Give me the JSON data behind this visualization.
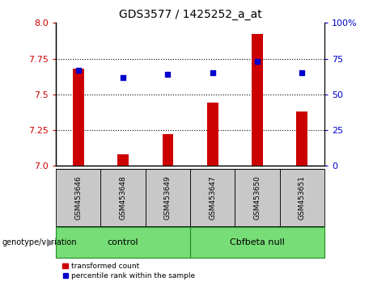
{
  "title": "GDS3577 / 1425252_a_at",
  "samples": [
    "GSM453646",
    "GSM453648",
    "GSM453649",
    "GSM453647",
    "GSM453650",
    "GSM453651"
  ],
  "red_values": [
    7.68,
    7.08,
    7.22,
    7.44,
    7.92,
    7.38
  ],
  "blue_values": [
    67,
    62,
    64,
    65,
    73,
    65
  ],
  "ylim_left": [
    7.0,
    8.0
  ],
  "ylim_right": [
    0,
    100
  ],
  "yticks_left": [
    7.0,
    7.25,
    7.5,
    7.75,
    8.0
  ],
  "yticks_right": [
    0,
    25,
    50,
    75,
    100
  ],
  "ytick_labels_right": [
    "0",
    "25",
    "50",
    "75",
    "100%"
  ],
  "group_label_prefix": "genotype/variation",
  "legend_red": "transformed count",
  "legend_blue": "percentile rank within the sample",
  "red_color": "#CC0000",
  "blue_color": "#0000CC",
  "tick_label_area_color": "#C8C8C8",
  "group_area_color": "#77DD77",
  "group_border_color": "#228B22",
  "dotted_lines": [
    7.25,
    7.5,
    7.75
  ]
}
